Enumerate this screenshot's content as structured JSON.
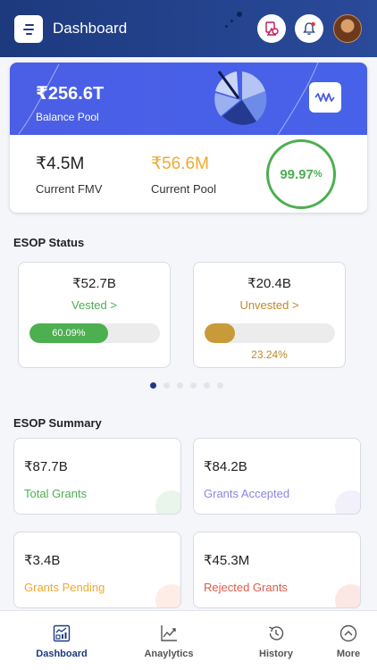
{
  "header": {
    "title": "Dashboard",
    "icons": [
      "menu-logo-icon",
      "shapes-icon",
      "bell-icon",
      "avatar"
    ],
    "colors": {
      "bar": "#1d3a7e",
      "notification_dot": "#e53935"
    }
  },
  "balance": {
    "pool_value": "₹256.6T",
    "pool_label": "Balance Pool",
    "fmv_value": "₹4.5M",
    "fmv_label": "Current FMV",
    "current_pool_value": "₹56.6M",
    "current_pool_label": "Current Pool",
    "ring_value": "99.97",
    "ring_unit": "%",
    "ring_fraction": 0.9997,
    "colors": {
      "banner": "#4a5ee6",
      "pool": "#f0a830",
      "ring": "#4caf50"
    }
  },
  "esop_status": {
    "title": "ESOP Status",
    "cards": [
      {
        "amount": "₹52.7B",
        "label": "Vested >",
        "percent_text": "60.09%",
        "fraction": 0.6009,
        "color": "#4caf50"
      },
      {
        "amount": "₹20.4B",
        "label": "Unvested >",
        "percent_text": "23.24%",
        "fraction": 0.2324,
        "color": "#c99a3a"
      }
    ],
    "carousel": {
      "pages": 6,
      "active": 0
    }
  },
  "esop_summary": {
    "title": "ESOP Summary",
    "cards": [
      {
        "amount": "₹87.7B",
        "label": "Total Grants",
        "color": "#4caf50"
      },
      {
        "amount": "₹84.2B",
        "label": "Grants Accepted",
        "color": "#8a86e0"
      },
      {
        "amount": "₹3.4B",
        "label": "Grants Pending",
        "color": "#f0a830"
      },
      {
        "amount": "₹45.3M",
        "label": "Rejected Grants",
        "color": "#e05a4a"
      }
    ]
  },
  "bottom_nav": {
    "items": [
      {
        "label": "Dashboard",
        "icon": "dashboard-icon",
        "active": true
      },
      {
        "label": "Anaylytics",
        "icon": "analytics-icon",
        "active": false
      },
      {
        "label": "History",
        "icon": "history-icon",
        "active": false
      },
      {
        "label": "More",
        "icon": "more-chevron-icon",
        "active": false
      }
    ]
  }
}
